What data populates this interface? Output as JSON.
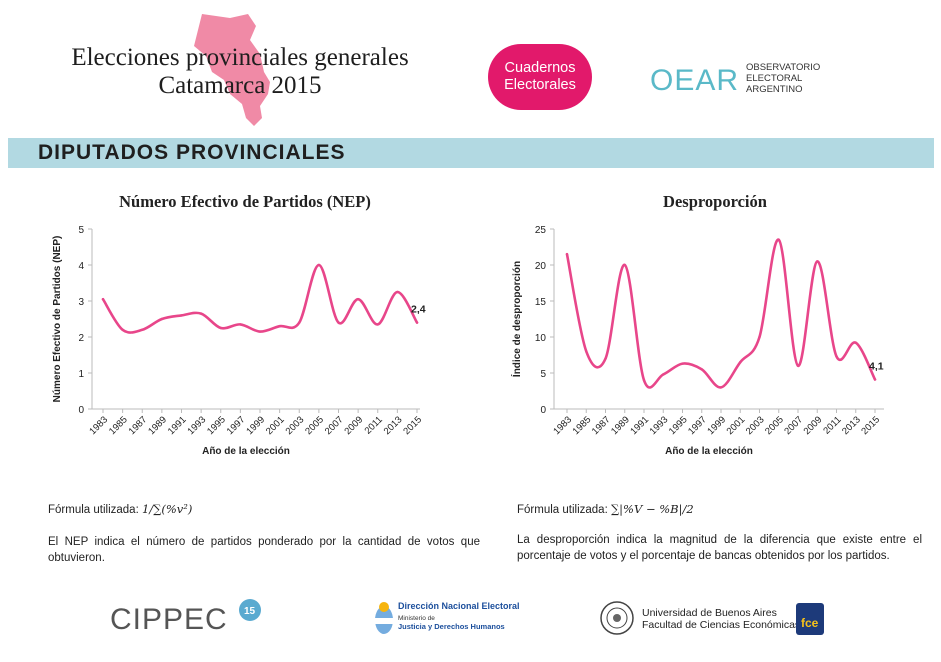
{
  "header": {
    "title_line1": "Elecciones provinciales generales",
    "title_line2": "Catamarca 2015",
    "badge_line1": "Cuadernos",
    "badge_line2": "Electorales",
    "oear_mark": "OEAR",
    "oear_line1": "OBSERVATORIO",
    "oear_line2": "ELECTORAL",
    "oear_line3": "ARGENTINO",
    "map_color": "#f08aa6",
    "badge_color": "#e2196b"
  },
  "section": {
    "title": "DIPUTADOS PROVINCIALES",
    "bar_color": "#b2d9e2"
  },
  "chart_data": [
    {
      "type": "line",
      "title": "Número Efectivo de Partidos (NEP)",
      "xlabel": "Año de la elección",
      "ylabel": "Número Efectivo de Partidos (NEP)",
      "ylim": [
        0,
        5
      ],
      "yticks": [
        "0",
        "1",
        "2",
        "3",
        "4",
        "5"
      ],
      "x": [
        "1983",
        "1985",
        "1987",
        "1989",
        "1991",
        "1993",
        "1995",
        "1997",
        "1999",
        "2001",
        "2003",
        "2005",
        "2007",
        "2009",
        "2011",
        "2013",
        "2015"
      ],
      "values": [
        3.05,
        2.2,
        2.2,
        2.5,
        2.6,
        2.65,
        2.25,
        2.35,
        2.15,
        2.3,
        2.4,
        4.0,
        2.4,
        3.05,
        2.35,
        3.25,
        2.4
      ],
      "last_label": "2,4",
      "line_color": "#e8468a",
      "grid": false
    },
    {
      "type": "line",
      "title": "Desproporción",
      "xlabel": "Año de la elección",
      "ylabel": "Índice de desproporción",
      "ylim": [
        0,
        25
      ],
      "yticks": [
        "0",
        "5",
        "10",
        "15",
        "20",
        "25"
      ],
      "x": [
        "1983",
        "1985",
        "1987",
        "1989",
        "1991",
        "1993",
        "1995",
        "1997",
        "1999",
        "2001",
        "2003",
        "2005",
        "2007",
        "2009",
        "2011",
        "2013",
        "2015"
      ],
      "values": [
        21.5,
        8.0,
        7.0,
        20.0,
        4.0,
        4.8,
        6.3,
        5.5,
        3.0,
        6.5,
        10.0,
        23.5,
        6.0,
        20.5,
        7.3,
        9.2,
        4.1
      ],
      "last_label": "4,1",
      "line_color": "#e8468a",
      "grid": false
    }
  ],
  "nep_formula_label": "Fórmula utilizada: ",
  "nep_formula": "1/∑(%v²)",
  "nep_description": "El NEP indica el número de partidos ponderado por la cantidad de votos que obtuvieron.",
  "dis_formula_label": "Fórmula utilizada: ",
  "dis_formula": "∑|%V − %B|/2",
  "dis_description": "La desproporción indica la magnitud de la diferencia que existe entre el porcentaje de votos y el porcentaje de bancas obtenidos por los partidos.",
  "footer": {
    "cippec": "CIPPEC",
    "cippec_badge": "15",
    "dne_line1": "Dirección Nacional Electoral",
    "dne_line2": "Ministerio de",
    "dne_line3": "Justicia y Derechos Humanos",
    "uba_line1": "Universidad de Buenos Aires",
    "uba_line2": "Facultad de Ciencias Económicas",
    "uba_badge": "fce"
  }
}
